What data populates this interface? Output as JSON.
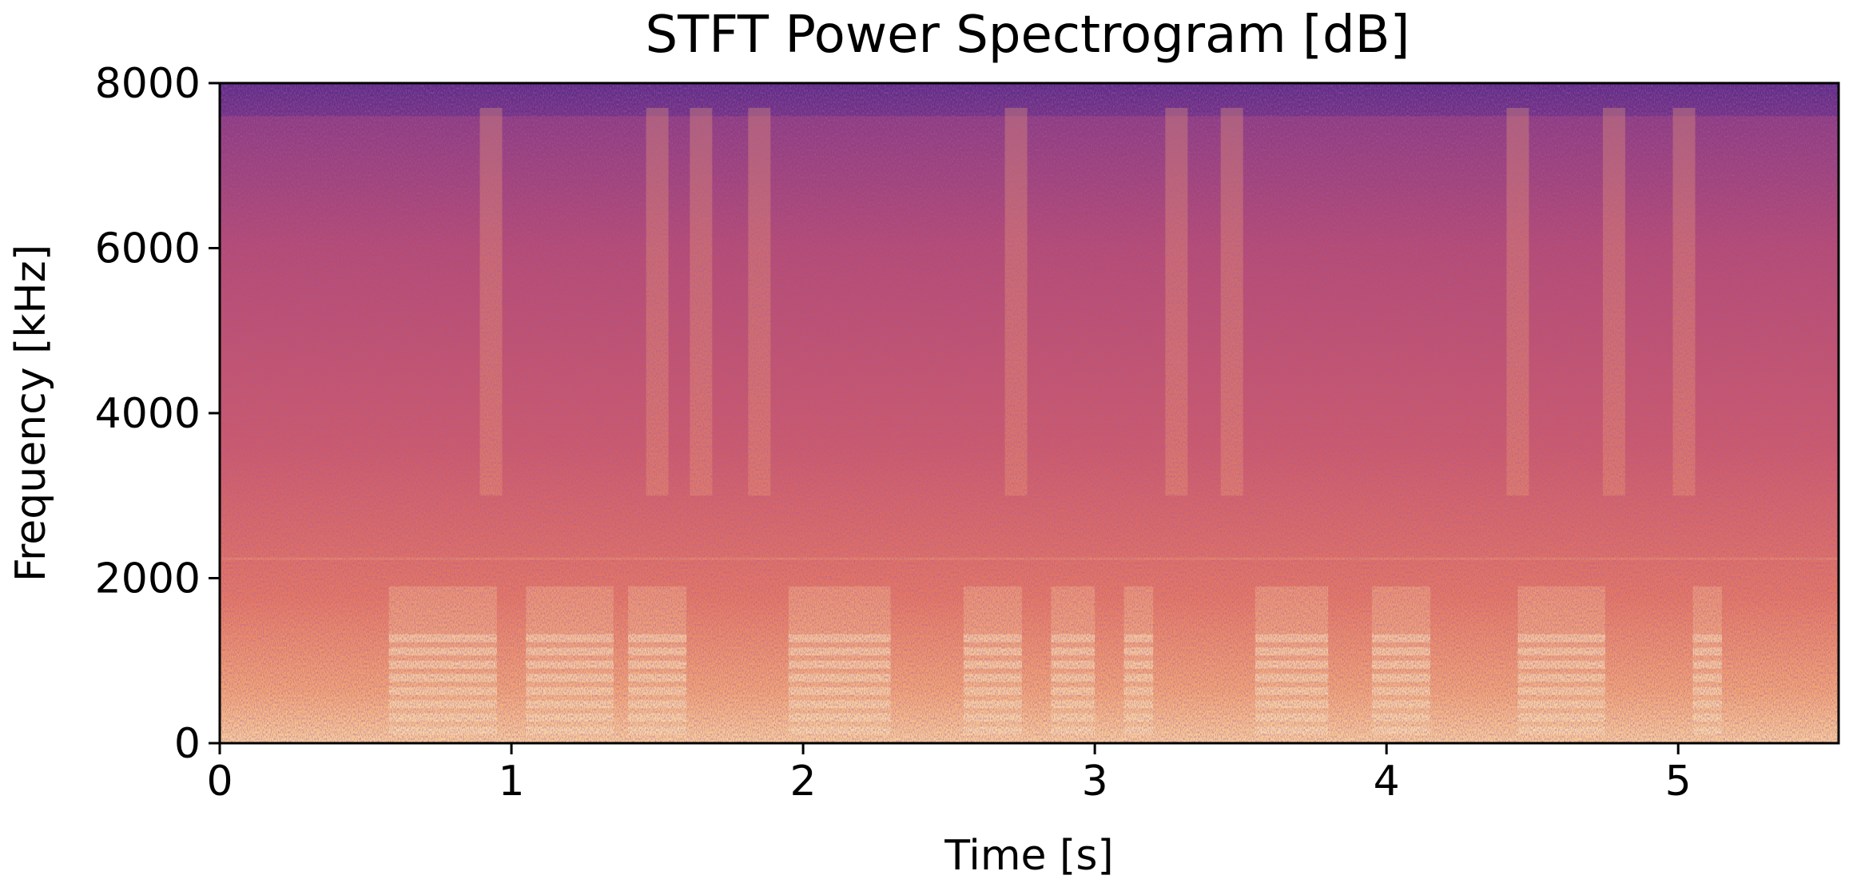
{
  "chart_data": {
    "type": "heatmap",
    "title": "STFT Power Spectrogram [dB]",
    "xlabel": "Time [s]",
    "ylabel": "Frequency [kHz]",
    "xlim": [
      0,
      5.55
    ],
    "ylim": [
      0,
      8000
    ],
    "x_ticks": [
      {
        "value": 0,
        "label": "0"
      },
      {
        "value": 1,
        "label": "1"
      },
      {
        "value": 2,
        "label": "2"
      },
      {
        "value": 3,
        "label": "3"
      },
      {
        "value": 4,
        "label": "4"
      },
      {
        "value": 5,
        "label": "5"
      }
    ],
    "y_ticks": [
      {
        "value": 0,
        "label": "0"
      },
      {
        "value": 2000,
        "label": "2000"
      },
      {
        "value": 4000,
        "label": "4000"
      },
      {
        "value": 6000,
        "label": "6000"
      },
      {
        "value": 8000,
        "label": "8000"
      }
    ],
    "colormap": "magma",
    "colormap_stops": [
      "#5b2a86",
      "#8e3b87",
      "#c14f6f",
      "#e8755d",
      "#f9a66c",
      "#fcd89a"
    ],
    "grid": false,
    "legend": "none"
  }
}
